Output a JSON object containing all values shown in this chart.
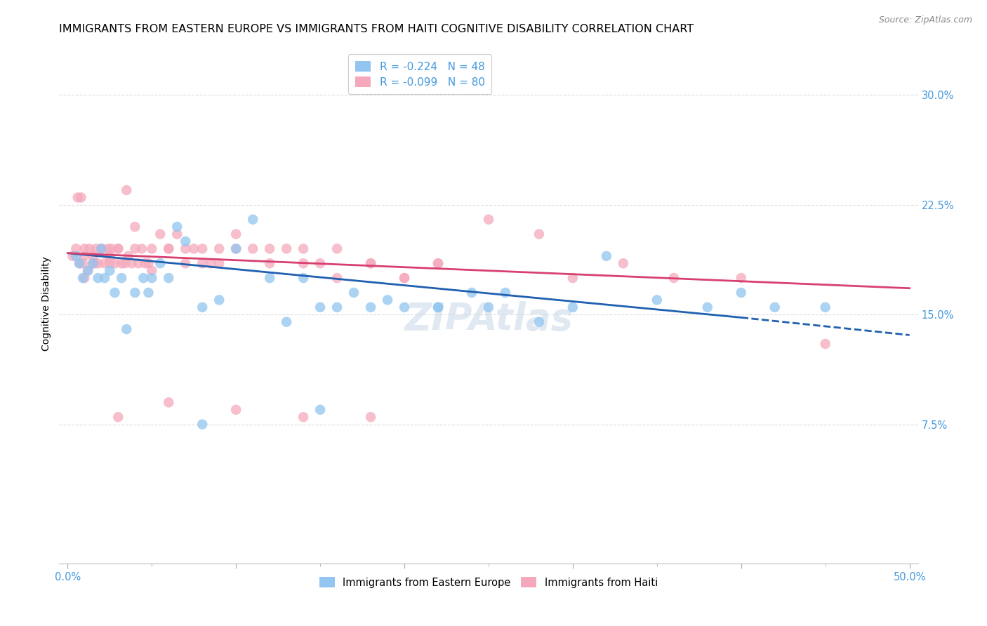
{
  "title": "IMMIGRANTS FROM EASTERN EUROPE VS IMMIGRANTS FROM HAITI COGNITIVE DISABILITY CORRELATION CHART",
  "source": "Source: ZipAtlas.com",
  "ylabel": "Cognitive Disability",
  "xlim": [
    -0.005,
    0.505
  ],
  "ylim": [
    -0.02,
    0.335
  ],
  "yticks": [
    0.075,
    0.15,
    0.225,
    0.3
  ],
  "yticklabels": [
    "7.5%",
    "15.0%",
    "22.5%",
    "30.0%"
  ],
  "xticks": [
    0.0,
    0.1,
    0.2,
    0.3,
    0.4,
    0.5
  ],
  "xticklabels": [
    "0.0%",
    "",
    "",
    "",
    "",
    "50.0%"
  ],
  "legend_entries": [
    {
      "label": "R = -0.224   N = 48"
    },
    {
      "label": "R = -0.099   N = 80"
    }
  ],
  "legend_label_bottom": [
    "Immigrants from Eastern Europe",
    "Immigrants from Haiti"
  ],
  "watermark": "ZIPAtlas",
  "blue_scatter_x": [
    0.005,
    0.007,
    0.009,
    0.012,
    0.015,
    0.018,
    0.02,
    0.022,
    0.025,
    0.028,
    0.032,
    0.035,
    0.04,
    0.045,
    0.048,
    0.05,
    0.055,
    0.06,
    0.065,
    0.07,
    0.08,
    0.09,
    0.1,
    0.11,
    0.12,
    0.13,
    0.14,
    0.15,
    0.16,
    0.17,
    0.18,
    0.19,
    0.2,
    0.22,
    0.24,
    0.26,
    0.28,
    0.3,
    0.32,
    0.35,
    0.38,
    0.4,
    0.42,
    0.45,
    0.22,
    0.25,
    0.15,
    0.08
  ],
  "blue_scatter_y": [
    0.19,
    0.185,
    0.175,
    0.18,
    0.185,
    0.175,
    0.195,
    0.175,
    0.18,
    0.165,
    0.175,
    0.14,
    0.165,
    0.175,
    0.165,
    0.175,
    0.185,
    0.175,
    0.21,
    0.2,
    0.155,
    0.16,
    0.195,
    0.215,
    0.175,
    0.145,
    0.175,
    0.085,
    0.155,
    0.165,
    0.155,
    0.16,
    0.155,
    0.155,
    0.165,
    0.165,
    0.145,
    0.155,
    0.19,
    0.16,
    0.155,
    0.165,
    0.155,
    0.155,
    0.155,
    0.155,
    0.155,
    0.075
  ],
  "pink_scatter_x": [
    0.003,
    0.005,
    0.007,
    0.008,
    0.009,
    0.01,
    0.012,
    0.013,
    0.015,
    0.016,
    0.017,
    0.018,
    0.02,
    0.022,
    0.024,
    0.025,
    0.026,
    0.028,
    0.03,
    0.032,
    0.034,
    0.036,
    0.038,
    0.04,
    0.042,
    0.044,
    0.046,
    0.048,
    0.05,
    0.055,
    0.06,
    0.065,
    0.07,
    0.075,
    0.08,
    0.085,
    0.09,
    0.1,
    0.11,
    0.12,
    0.13,
    0.14,
    0.15,
    0.16,
    0.18,
    0.2,
    0.22,
    0.25,
    0.28,
    0.3,
    0.33,
    0.36,
    0.4,
    0.45,
    0.006,
    0.01,
    0.015,
    0.02,
    0.025,
    0.03,
    0.035,
    0.04,
    0.05,
    0.06,
    0.07,
    0.08,
    0.09,
    0.1,
    0.12,
    0.14,
    0.16,
    0.18,
    0.2,
    0.22,
    0.18,
    0.14,
    0.1,
    0.06,
    0.03,
    0.01
  ],
  "pink_scatter_y": [
    0.19,
    0.195,
    0.185,
    0.23,
    0.185,
    0.19,
    0.18,
    0.195,
    0.19,
    0.185,
    0.195,
    0.185,
    0.195,
    0.185,
    0.195,
    0.19,
    0.195,
    0.185,
    0.195,
    0.185,
    0.185,
    0.19,
    0.185,
    0.195,
    0.185,
    0.195,
    0.185,
    0.185,
    0.195,
    0.205,
    0.195,
    0.205,
    0.185,
    0.195,
    0.195,
    0.185,
    0.195,
    0.205,
    0.195,
    0.185,
    0.195,
    0.185,
    0.185,
    0.175,
    0.185,
    0.175,
    0.185,
    0.215,
    0.205,
    0.175,
    0.185,
    0.175,
    0.175,
    0.13,
    0.23,
    0.195,
    0.185,
    0.195,
    0.185,
    0.195,
    0.235,
    0.21,
    0.18,
    0.195,
    0.195,
    0.185,
    0.185,
    0.195,
    0.195,
    0.195,
    0.195,
    0.185,
    0.175,
    0.185,
    0.08,
    0.08,
    0.085,
    0.09,
    0.08,
    0.175
  ],
  "blue_line_x_start": 0.0,
  "blue_line_x_solid_end": 0.4,
  "blue_line_x_end": 0.5,
  "blue_line_y_start": 0.192,
  "blue_line_y_solid_end": 0.148,
  "blue_line_y_end": 0.136,
  "pink_line_x_start": 0.0,
  "pink_line_x_end": 0.5,
  "pink_line_y_start": 0.192,
  "pink_line_y_end": 0.168,
  "scatter_size": 110,
  "blue_color": "#92c5f0",
  "pink_color": "#f5a8bc",
  "blue_line_color": "#2060b0",
  "pink_line_color": "#d84070",
  "axis_tick_color": "#4499dd",
  "grid_color": "#dddddd",
  "title_fontsize": 11.5,
  "axis_label_fontsize": 10,
  "tick_fontsize": 10.5,
  "legend_fontsize": 11,
  "background_color": "#ffffff",
  "watermark_text": "ZIPAtlas"
}
